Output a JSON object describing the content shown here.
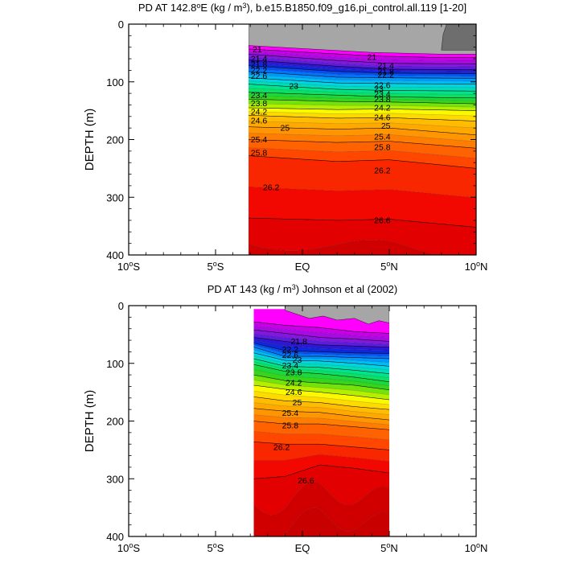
{
  "chart_data": [
    {
      "type": "contour",
      "title": "PD AT 142.8°E (kg / m³), b.e15.B1850.f09_g16.pi_control.all.119 [1-20]",
      "title_parts": {
        "prefix": "PD AT 142.8",
        "deg": "o",
        "mid": "E (kg / m",
        "pow": "3",
        "suffix": "), b.e15.B1850.f09_g16.pi_control.all.119 [1-20]"
      },
      "ylabel": "DEPTH (m)",
      "xlim": [
        -10,
        10
      ],
      "ylim": [
        0,
        400
      ],
      "y_reversed": true,
      "x_ticks": [
        {
          "value": -10,
          "label": "10",
          "deg": "o",
          "hem": "S"
        },
        {
          "value": -5,
          "label": "5",
          "deg": "o",
          "hem": "S"
        },
        {
          "value": 0,
          "label": "EQ",
          "deg": "",
          "hem": ""
        },
        {
          "value": 5,
          "label": "5",
          "deg": "o",
          "hem": "N"
        },
        {
          "value": 10,
          "label": "10",
          "deg": "o",
          "hem": "N"
        }
      ],
      "y_ticks": [
        0,
        100,
        200,
        300,
        400
      ],
      "data_x_range": [
        -3.1,
        10
      ],
      "contour_interval": 0.2,
      "density_range": [
        20.6,
        27.0
      ],
      "missing_color": "#a6a6a6",
      "land_color": "#6e6e6e",
      "contours": [
        {
          "level": 21.0,
          "depths": [
            [
              -3.1,
              43
            ],
            [
              1,
              50
            ],
            [
              4,
              55
            ],
            [
              8,
              58
            ],
            [
              10,
              58
            ]
          ]
        },
        {
          "level": 21.4,
          "depths": [
            [
              -3.1,
              52
            ],
            [
              2,
              63
            ],
            [
              5,
              68
            ],
            [
              10,
              69
            ]
          ]
        },
        {
          "level": 21.8,
          "depths": [
            [
              -3.1,
              62
            ],
            [
              2,
              73
            ],
            [
              5,
              78
            ],
            [
              10,
              79
            ]
          ]
        },
        {
          "level": 22.2,
          "depths": [
            [
              -3.1,
              72
            ],
            [
              2,
              82
            ],
            [
              5,
              85
            ],
            [
              10,
              86
            ]
          ]
        },
        {
          "level": 22.6,
          "depths": [
            [
              -3.1,
              82
            ],
            [
              2,
              92
            ],
            [
              5,
              93
            ],
            [
              10,
              94
            ]
          ]
        },
        {
          "level": 23.0,
          "depths": [
            [
              -3.1,
              93
            ],
            [
              2,
              102
            ],
            [
              5,
              103
            ],
            [
              10,
              104
            ]
          ]
        },
        {
          "level": 23.4,
          "depths": [
            [
              -3.1,
              104
            ],
            [
              2,
              113
            ],
            [
              5,
              115
            ],
            [
              10,
              116
            ]
          ]
        },
        {
          "level": 23.8,
          "depths": [
            [
              -3.1,
              118
            ],
            [
              2,
              123
            ],
            [
              5,
              126
            ],
            [
              10,
              128
            ]
          ]
        },
        {
          "level": 24.2,
          "depths": [
            [
              -3.1,
              130
            ],
            [
              2,
              134
            ],
            [
              5,
              135
            ],
            [
              10,
              138
            ]
          ]
        },
        {
          "level": 24.6,
          "depths": [
            [
              -3.1,
              145
            ],
            [
              2,
              148
            ],
            [
              5,
              147
            ],
            [
              10,
              150
            ]
          ]
        },
        {
          "level": 25.0,
          "depths": [
            [
              -3.1,
              158
            ],
            [
              2,
              163
            ],
            [
              5,
              162
            ],
            [
              10,
              168
            ]
          ]
        },
        {
          "level": 25.4,
          "depths": [
            [
              -3.1,
              178
            ],
            [
              2,
              182
            ],
            [
              5,
              180
            ],
            [
              10,
              192
            ]
          ]
        },
        {
          "level": 25.8,
          "depths": [
            [
              -3.1,
              200
            ],
            [
              2,
              205
            ],
            [
              5,
              203
            ],
            [
              10,
              215
            ]
          ]
        },
        {
          "level": 26.2,
          "depths": [
            [
              -3.1,
              228
            ],
            [
              2,
              238
            ],
            [
              5,
              235
            ],
            [
              10,
              250
            ]
          ]
        },
        {
          "level": 26.6,
          "depths": [
            [
              -3.1,
              336
            ],
            [
              2,
              340
            ],
            [
              5,
              338
            ],
            [
              10,
              352
            ]
          ]
        }
      ],
      "contour_labels": [
        {
          "text": "21",
          "x": -2.6,
          "y": 44
        },
        {
          "text": "21",
          "x": 4.0,
          "y": 57
        },
        {
          "text": "21.4",
          "x": -2.5,
          "y": 60
        },
        {
          "text": "21.8",
          "x": -2.5,
          "y": 70
        },
        {
          "text": "22.2",
          "x": -2.5,
          "y": 80
        },
        {
          "text": "22.6",
          "x": -2.5,
          "y": 90
        },
        {
          "text": "21.4",
          "x": 4.8,
          "y": 72
        },
        {
          "text": "21.8",
          "x": 4.8,
          "y": 82
        },
        {
          "text": "22.2",
          "x": 4.8,
          "y": 88
        },
        {
          "text": "23",
          "x": -0.5,
          "y": 107
        },
        {
          "text": "22.6",
          "x": 4.6,
          "y": 106
        },
        {
          "text": "23.4",
          "x": -2.5,
          "y": 123
        },
        {
          "text": "23.8",
          "x": -2.5,
          "y": 137
        },
        {
          "text": "23",
          "x": 4.4,
          "y": 112
        },
        {
          "text": "23.4",
          "x": 4.6,
          "y": 121
        },
        {
          "text": "23.8",
          "x": 4.6,
          "y": 130
        },
        {
          "text": "24.2",
          "x": -2.5,
          "y": 152
        },
        {
          "text": "24.2",
          "x": 4.6,
          "y": 145
        },
        {
          "text": "24.6",
          "x": -2.5,
          "y": 167
        },
        {
          "text": "24.6",
          "x": 4.6,
          "y": 162
        },
        {
          "text": "25",
          "x": -1.0,
          "y": 180
        },
        {
          "text": "25",
          "x": 4.8,
          "y": 176
        },
        {
          "text": "25.4",
          "x": -2.5,
          "y": 200
        },
        {
          "text": "25.4",
          "x": 4.6,
          "y": 195
        },
        {
          "text": "25.8",
          "x": -2.5,
          "y": 223
        },
        {
          "text": "25.8",
          "x": 4.6,
          "y": 213
        },
        {
          "text": "26.2",
          "x": 4.6,
          "y": 254
        },
        {
          "text": "26.2",
          "x": -1.8,
          "y": 283
        },
        {
          "text": "26.6",
          "x": 4.6,
          "y": 340
        }
      ]
    },
    {
      "type": "contour",
      "title": "PD AT 143 (kg / m³) Johnson et al (2002)",
      "title_parts": {
        "prefix": "PD AT 143 (kg / m",
        "deg": "",
        "mid": "",
        "pow": "3",
        "suffix": ") Johnson et al (2002)"
      },
      "ylabel": "DEPTH (m)",
      "xlim": [
        -10,
        10
      ],
      "ylim": [
        0,
        400
      ],
      "y_reversed": true,
      "x_ticks": [
        {
          "value": -10,
          "label": "10",
          "deg": "o",
          "hem": "S"
        },
        {
          "value": -5,
          "label": "5",
          "deg": "o",
          "hem": "S"
        },
        {
          "value": 0,
          "label": "EQ",
          "deg": "",
          "hem": ""
        },
        {
          "value": 5,
          "label": "5",
          "deg": "o",
          "hem": "N"
        },
        {
          "value": 10,
          "label": "10",
          "deg": "o",
          "hem": "N"
        }
      ],
      "y_ticks": [
        0,
        100,
        200,
        300,
        400
      ],
      "data_x_range": [
        -2.8,
        5.0
      ],
      "contour_interval": 0.2,
      "density_range": [
        20.6,
        27.0
      ],
      "missing_color": "#a6a6a6",
      "contours": [
        {
          "level": 21.0,
          "depths": [
            [
              -2.8,
              28
            ],
            [
              -1,
              34
            ],
            [
              1,
              38
            ],
            [
              3,
              45
            ],
            [
              5,
              48
            ]
          ]
        },
        {
          "level": 21.4,
          "depths": [
            [
              -2.8,
              42
            ],
            [
              -1,
              48
            ],
            [
              1,
              55
            ],
            [
              3,
              58
            ],
            [
              5,
              62
            ]
          ]
        },
        {
          "level": 21.8,
          "depths": [
            [
              -2.8,
              55
            ],
            [
              -1,
              62
            ],
            [
              1,
              68
            ],
            [
              3,
              70
            ],
            [
              5,
              72
            ]
          ]
        },
        {
          "level": 22.2,
          "depths": [
            [
              -2.8,
              65
            ],
            [
              -1,
              78
            ],
            [
              1,
              80
            ],
            [
              3,
              82
            ],
            [
              5,
              83
            ]
          ]
        },
        {
          "level": 22.6,
          "depths": [
            [
              -2.8,
              72
            ],
            [
              -1,
              88
            ],
            [
              1,
              88
            ],
            [
              3,
              90
            ],
            [
              5,
              92
            ]
          ]
        },
        {
          "level": 23.0,
          "depths": [
            [
              -2.8,
              82
            ],
            [
              -1,
              95
            ],
            [
              1,
              96
            ],
            [
              3,
              100
            ],
            [
              5,
              105
            ]
          ]
        },
        {
          "level": 23.4,
          "depths": [
            [
              -2.8,
              92
            ],
            [
              -1,
              105
            ],
            [
              1,
              107
            ],
            [
              3,
              112
            ],
            [
              5,
              118
            ]
          ]
        },
        {
          "level": 23.8,
          "depths": [
            [
              -2.8,
              102
            ],
            [
              -1,
              114
            ],
            [
              1,
              118
            ],
            [
              3,
              124
            ],
            [
              5,
              132
            ]
          ]
        },
        {
          "level": 24.2,
          "depths": [
            [
              -2.8,
              120
            ],
            [
              -1,
              130
            ],
            [
              1,
              134
            ],
            [
              3,
              138
            ],
            [
              5,
              146
            ]
          ]
        },
        {
          "level": 24.6,
          "depths": [
            [
              -2.8,
              138
            ],
            [
              -1,
              145
            ],
            [
              1,
              150
            ],
            [
              3,
              156
            ],
            [
              5,
              163
            ]
          ]
        },
        {
          "level": 25.0,
          "depths": [
            [
              -2.8,
              158
            ],
            [
              -1,
              165
            ],
            [
              1,
              168
            ],
            [
              3,
              175
            ],
            [
              5,
              180
            ]
          ]
        },
        {
          "level": 25.4,
          "depths": [
            [
              -2.8,
              178
            ],
            [
              -1,
              183
            ],
            [
              1,
              185
            ],
            [
              3,
              192
            ],
            [
              5,
              198
            ]
          ]
        },
        {
          "level": 25.8,
          "depths": [
            [
              -2.8,
              200
            ],
            [
              -1,
              205
            ],
            [
              1,
              205
            ],
            [
              3,
              210
            ],
            [
              5,
              215
            ]
          ]
        },
        {
          "level": 26.2,
          "depths": [
            [
              -2.8,
              236
            ],
            [
              -1,
              240
            ],
            [
              1,
              240
            ],
            [
              3,
              245
            ],
            [
              5,
              250
            ]
          ]
        },
        {
          "level": 26.6,
          "depths": [
            [
              -2.8,
              300
            ],
            [
              -1,
              296
            ],
            [
              1,
              276
            ],
            [
              3,
              282
            ],
            [
              5,
              290
            ]
          ]
        }
      ],
      "contour_labels": [
        {
          "text": "21.8",
          "x": -0.2,
          "y": 62
        },
        {
          "text": "22.2",
          "x": -0.7,
          "y": 76
        },
        {
          "text": "22.6",
          "x": -0.7,
          "y": 86
        },
        {
          "text": "23",
          "x": -0.3,
          "y": 94
        },
        {
          "text": "23.4",
          "x": -0.7,
          "y": 104
        },
        {
          "text": "23.8",
          "x": -0.5,
          "y": 116
        },
        {
          "text": "24.2",
          "x": -0.5,
          "y": 134
        },
        {
          "text": "24.6",
          "x": -0.5,
          "y": 150
        },
        {
          "text": "25",
          "x": -0.3,
          "y": 168
        },
        {
          "text": "25.4",
          "x": -0.7,
          "y": 186
        },
        {
          "text": "25.8",
          "x": -0.7,
          "y": 208
        },
        {
          "text": "26.2",
          "x": -1.2,
          "y": 245
        },
        {
          "text": "26.6",
          "x": 0.2,
          "y": 303
        }
      ]
    }
  ]
}
